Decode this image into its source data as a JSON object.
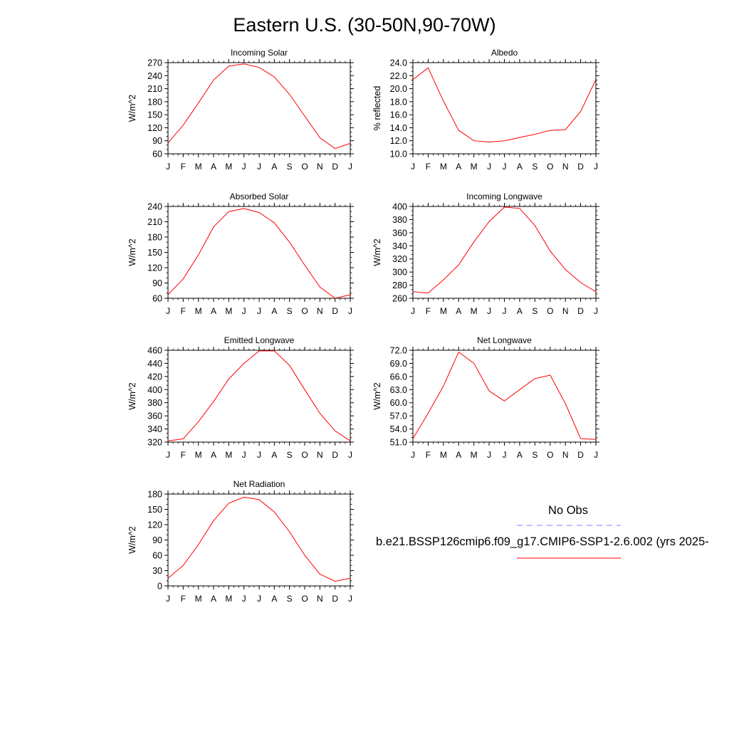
{
  "page": {
    "title": "Eastern U.S. (30-50N,90-70W)"
  },
  "colors": {
    "model_line": "#ff0000",
    "obs_line": "#8080ff",
    "axis": "#000000"
  },
  "legend": {
    "obs_label": "No Obs",
    "model_label": "b.e21.BSSP126cmip6.f09_g17.CMIP6-SSP1-2.6.002 (yrs 2025-"
  },
  "chart_data": [
    {
      "type": "line",
      "title": "Incoming Solar",
      "ylabel": "W/m^2",
      "x": [
        "J",
        "F",
        "M",
        "A",
        "M",
        "J",
        "J",
        "A",
        "S",
        "O",
        "N",
        "D",
        "J"
      ],
      "ylim": [
        60,
        270
      ],
      "yticks": [
        "60",
        "90",
        "120",
        "150",
        "180",
        "210",
        "240",
        "270"
      ],
      "series": [
        {
          "values": [
            85,
            126,
            177,
            230,
            262,
            267,
            259,
            237,
            197,
            147,
            97,
            72,
            84
          ]
        }
      ]
    },
    {
      "type": "line",
      "title": "Albedo",
      "ylabel": "% reflected",
      "x": [
        "J",
        "F",
        "M",
        "A",
        "M",
        "J",
        "J",
        "A",
        "S",
        "O",
        "N",
        "D",
        "J"
      ],
      "ylim": [
        10.0,
        24.0
      ],
      "yticks": [
        "10.0",
        "12.0",
        "14.0",
        "16.0",
        "18.0",
        "20.0",
        "22.0",
        "24.0"
      ],
      "series": [
        {
          "values": [
            21.4,
            23.2,
            18.1,
            13.6,
            12.0,
            11.8,
            12.0,
            12.5,
            13.0,
            13.6,
            13.7,
            16.5,
            21.4
          ]
        }
      ]
    },
    {
      "type": "line",
      "title": "Absorbed Solar",
      "ylabel": "W/m^2",
      "x": [
        "J",
        "F",
        "M",
        "A",
        "M",
        "J",
        "J",
        "A",
        "S",
        "O",
        "N",
        "D",
        "J"
      ],
      "ylim": [
        60,
        240
      ],
      "yticks": [
        "60",
        "90",
        "120",
        "150",
        "180",
        "210",
        "240"
      ],
      "series": [
        {
          "values": [
            67,
            98,
            145,
            200,
            230,
            236,
            228,
            208,
            170,
            125,
            82,
            60,
            67
          ]
        }
      ]
    },
    {
      "type": "line",
      "title": "Incoming Longwave",
      "ylabel": "W/m^2",
      "x": [
        "J",
        "F",
        "M",
        "A",
        "M",
        "J",
        "J",
        "A",
        "S",
        "O",
        "N",
        "D",
        "J"
      ],
      "ylim": [
        260,
        400
      ],
      "yticks": [
        "260",
        "280",
        "300",
        "320",
        "340",
        "360",
        "380",
        "400"
      ],
      "series": [
        {
          "values": [
            270,
            268,
            288,
            311,
            346,
            377,
            399,
            397,
            371,
            332,
            304,
            284,
            270
          ]
        }
      ]
    },
    {
      "type": "line",
      "title": "Emitted Longwave",
      "ylabel": "W/m^2",
      "x": [
        "J",
        "F",
        "M",
        "A",
        "M",
        "J",
        "J",
        "A",
        "S",
        "O",
        "N",
        "D",
        "J"
      ],
      "ylim": [
        320,
        460
      ],
      "yticks": [
        "320",
        "340",
        "360",
        "380",
        "400",
        "420",
        "440",
        "460"
      ],
      "series": [
        {
          "values": [
            322,
            325,
            351,
            382,
            416,
            440,
            459,
            459,
            437,
            400,
            364,
            337,
            322
          ]
        }
      ]
    },
    {
      "type": "line",
      "title": "Net Longwave",
      "ylabel": "W/m^2",
      "x": [
        "J",
        "F",
        "M",
        "A",
        "M",
        "J",
        "J",
        "A",
        "S",
        "O",
        "N",
        "D",
        "J"
      ],
      "ylim": [
        51.0,
        72.0
      ],
      "yticks": [
        "51.0",
        "54.0",
        "57.0",
        "60.0",
        "63.0",
        "66.0",
        "69.0",
        "72.0"
      ],
      "series": [
        {
          "values": [
            51.8,
            57.6,
            63.8,
            71.6,
            69.0,
            62.7,
            60.4,
            63.0,
            65.5,
            66.3,
            59.8,
            51.8,
            51.6
          ]
        }
      ]
    },
    {
      "type": "line",
      "title": "Net Radiation",
      "ylabel": "W/m^2",
      "x": [
        "J",
        "F",
        "M",
        "A",
        "M",
        "J",
        "J",
        "A",
        "S",
        "O",
        "N",
        "D",
        "J"
      ],
      "ylim": [
        0,
        180
      ],
      "yticks": [
        "0",
        "30",
        "60",
        "90",
        "120",
        "150",
        "180"
      ],
      "series": [
        {
          "values": [
            15,
            40,
            81,
            128,
            162,
            174,
            169,
            145,
            106,
            60,
            23,
            9,
            15
          ]
        }
      ]
    }
  ]
}
